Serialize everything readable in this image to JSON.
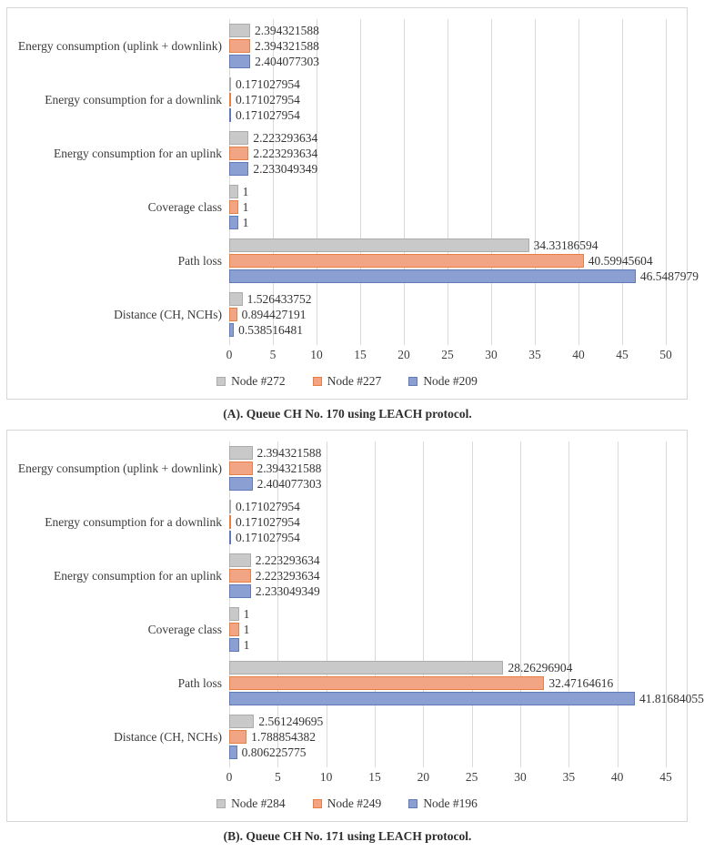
{
  "colors": {
    "series_fills": [
      "#c9c9c9",
      "#f2a584",
      "#8c9fd3"
    ],
    "series_borders": [
      "#ababab",
      "#e97e42",
      "#5f7ab9"
    ],
    "gridline": "#d9d9d9",
    "frame_border": "#d6d6d6",
    "text": "#3b3b3b"
  },
  "chart_data": [
    {
      "type": "bar",
      "orientation": "horizontal",
      "title": "(A). Queue CH No. 170 using LEACH protocol.",
      "categories": [
        "Energy consumption (uplink + downlink)",
        "Energy consumption for a downlink",
        "Energy consumption for an uplink",
        "Coverage class",
        "Path loss",
        "Distance (CH, NCHs)"
      ],
      "series": [
        {
          "name": "Node #272",
          "values": [
            2.394321588,
            0.171027954,
            2.223293634,
            1,
            34.33186594,
            1.526433752
          ],
          "labels": [
            "2.394321588",
            "0.171027954",
            "2.223293634",
            "1",
            "34.33186594",
            "1.526433752"
          ]
        },
        {
          "name": "Node #227",
          "values": [
            2.394321588,
            0.171027954,
            2.223293634,
            1,
            40.59945604,
            0.894427191
          ],
          "labels": [
            "2.394321588",
            "0.171027954",
            "2.223293634",
            "1",
            "40.59945604",
            "0.894427191"
          ]
        },
        {
          "name": "Node #209",
          "values": [
            2.404077303,
            0.171027954,
            2.233049349,
            1,
            46.5487979,
            0.538516481
          ],
          "labels": [
            "2.404077303",
            "0.171027954",
            "2.233049349",
            "1",
            "46.5487979",
            "0.538516481"
          ]
        }
      ],
      "xlim": [
        0,
        50
      ],
      "xticks": [
        0,
        5,
        10,
        15,
        20,
        25,
        30,
        35,
        40,
        45,
        50
      ],
      "grid": true,
      "legend_position": "bottom",
      "xlabel": "",
      "ylabel": ""
    },
    {
      "type": "bar",
      "orientation": "horizontal",
      "title": "(B). Queue CH No. 171 using LEACH protocol.",
      "categories": [
        "Energy consumption (uplink + downlink)",
        "Energy consumption for a downlink",
        "Energy consumption for an uplink",
        "Coverage class",
        "Path loss",
        "Distance (CH, NCHs)"
      ],
      "series": [
        {
          "name": "Node #284",
          "values": [
            2.394321588,
            0.171027954,
            2.223293634,
            1,
            28.26296904,
            2.561249695
          ],
          "labels": [
            "2.394321588",
            "0.171027954",
            "2.223293634",
            "1",
            "28.26296904",
            "2.561249695"
          ]
        },
        {
          "name": "Node #249",
          "values": [
            2.394321588,
            0.171027954,
            2.223293634,
            1,
            32.47164616,
            1.788854382
          ],
          "labels": [
            "2.394321588",
            "0.171027954",
            "2.223293634",
            "1",
            "32.47164616",
            "1.788854382"
          ]
        },
        {
          "name": "Node #196",
          "values": [
            2.404077303,
            0.171027954,
            2.233049349,
            1,
            41.81684055,
            0.806225775
          ],
          "labels": [
            "2.404077303",
            "0.171027954",
            "2.233049349",
            "1",
            "41.81684055",
            "0.806225775"
          ]
        }
      ],
      "xlim": [
        0,
        45
      ],
      "xticks": [
        0,
        5,
        10,
        15,
        20,
        25,
        30,
        35,
        40,
        45
      ],
      "grid": true,
      "legend_position": "bottom",
      "xlabel": "",
      "ylabel": ""
    }
  ]
}
